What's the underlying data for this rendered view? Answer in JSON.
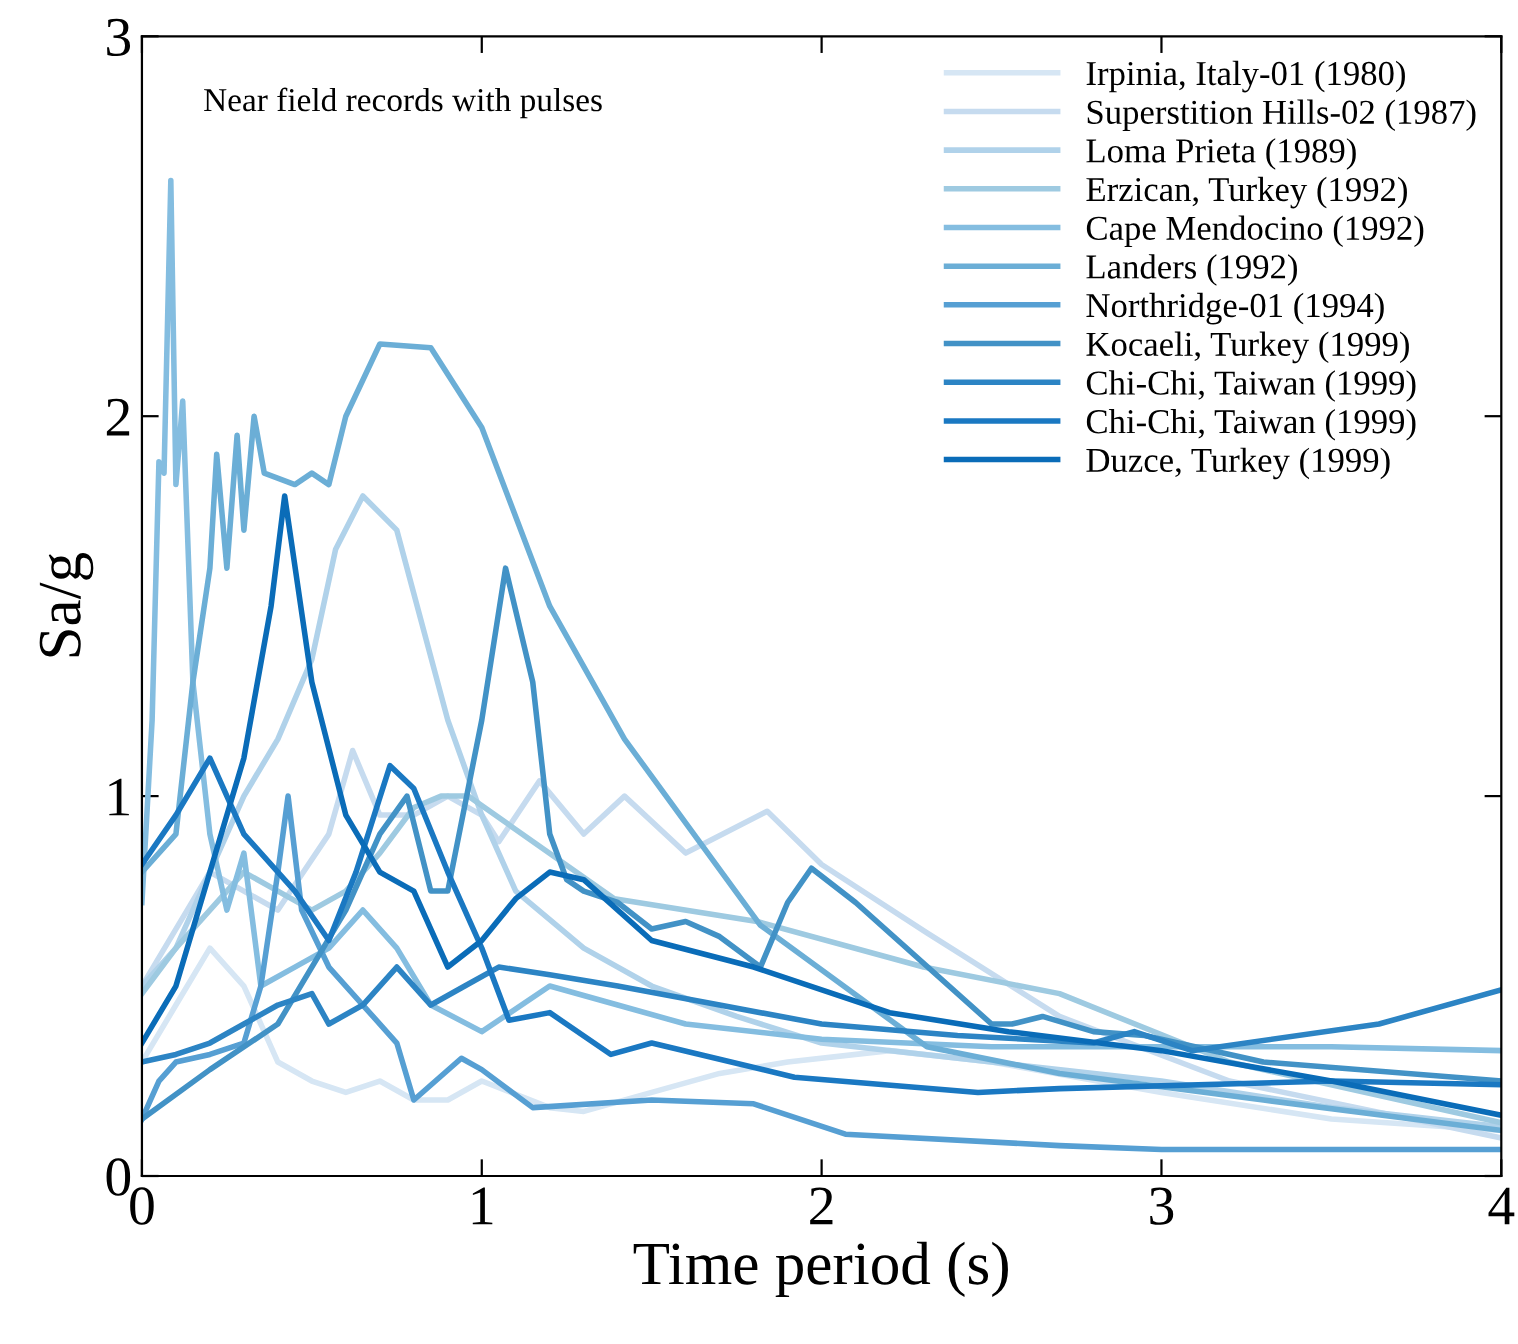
{
  "chart_data": {
    "type": "line",
    "xlabel": "Time period (s)",
    "ylabel": "Sa/g",
    "annotations": [
      "Near field records with pulses"
    ],
    "xlim": [
      0,
      4
    ],
    "ylim": [
      0,
      3
    ],
    "xticks": [
      0,
      1,
      2,
      3,
      4
    ],
    "yticks": [
      0,
      1,
      2,
      3
    ],
    "grid": false,
    "legend": "top right",
    "marker": "none",
    "line_style": "solid",
    "series": [
      {
        "name": "Irpinia, Italy-01 (1980)",
        "color": "#d6e6f4",
        "x": [
          0,
          0.1,
          0.2,
          0.3,
          0.4,
          0.5,
          0.6,
          0.7,
          0.8,
          0.9,
          1.0,
          1.2,
          1.3,
          1.5,
          1.7,
          1.9,
          2.2,
          2.5,
          3.0,
          3.5,
          4
        ],
        "values": [
          0.3,
          0.45,
          0.6,
          0.5,
          0.3,
          0.25,
          0.22,
          0.25,
          0.2,
          0.2,
          0.25,
          0.18,
          0.17,
          0.22,
          0.27,
          0.3,
          0.33,
          0.3,
          0.22,
          0.15,
          0.12
        ]
      },
      {
        "name": "Superstition Hills-02 (1987)",
        "color": "#c6dbef",
        "x": [
          0,
          0.2,
          0.4,
          0.55,
          0.62,
          0.7,
          0.8,
          0.9,
          1.0,
          1.05,
          1.17,
          1.3,
          1.42,
          1.6,
          1.84,
          2.0,
          2.31,
          2.7,
          3.2,
          4
        ],
        "values": [
          0.5,
          0.8,
          0.7,
          0.9,
          1.12,
          0.95,
          0.95,
          1.0,
          0.95,
          0.88,
          1.04,
          0.9,
          1.0,
          0.85,
          0.96,
          0.82,
          0.64,
          0.42,
          0.25,
          0.1
        ]
      },
      {
        "name": "Loma Prieta (1989)",
        "color": "#b0d2ea",
        "x": [
          0,
          0.1,
          0.2,
          0.3,
          0.4,
          0.5,
          0.57,
          0.65,
          0.75,
          0.9,
          1.0,
          1.1,
          1.3,
          1.5,
          1.75,
          2.0,
          2.5,
          3.0,
          3.5,
          4
        ],
        "values": [
          0.5,
          0.6,
          0.8,
          1.0,
          1.15,
          1.36,
          1.65,
          1.79,
          1.7,
          1.2,
          0.95,
          0.75,
          0.6,
          0.5,
          0.42,
          0.35,
          0.3,
          0.25,
          0.18,
          0.13
        ]
      },
      {
        "name": "Erzican, Turkey (1992)",
        "color": "#9ecae1",
        "x": [
          0,
          0.1,
          0.2,
          0.3,
          0.4,
          0.5,
          0.6,
          0.7,
          0.8,
          0.88,
          0.96,
          1.39,
          1.81,
          2.3,
          2.7,
          3.2,
          4
        ],
        "values": [
          0.48,
          0.6,
          0.7,
          0.8,
          0.75,
          0.7,
          0.75,
          0.85,
          0.97,
          1.0,
          1.0,
          0.73,
          0.67,
          0.55,
          0.48,
          0.3,
          0.14
        ]
      },
      {
        "name": "Cape Mendocino (1992)",
        "color": "#84bde0",
        "x": [
          0,
          0.03,
          0.05,
          0.065,
          0.085,
          0.1,
          0.12,
          0.15,
          0.2,
          0.25,
          0.3,
          0.35,
          0.45,
          0.55,
          0.65,
          0.75,
          0.85,
          1.0,
          1.2,
          1.4,
          1.6,
          2.0,
          2.5,
          3.0,
          3.5,
          4
        ],
        "values": [
          0.72,
          1.2,
          1.88,
          1.85,
          2.62,
          1.82,
          2.04,
          1.3,
          0.9,
          0.7,
          0.85,
          0.5,
          0.55,
          0.6,
          0.7,
          0.6,
          0.45,
          0.38,
          0.5,
          0.45,
          0.4,
          0.36,
          0.34,
          0.34,
          0.34,
          0.33
        ]
      },
      {
        "name": "Landers (1992)",
        "color": "#6baed6",
        "x": [
          0,
          0.1,
          0.15,
          0.2,
          0.22,
          0.25,
          0.28,
          0.3,
          0.33,
          0.36,
          0.45,
          0.5,
          0.55,
          0.6,
          0.7,
          0.85,
          1.0,
          1.2,
          1.42,
          1.82,
          2.31,
          2.7,
          3.3,
          4
        ],
        "values": [
          0.8,
          0.9,
          1.3,
          1.6,
          1.9,
          1.6,
          1.95,
          1.7,
          2.0,
          1.85,
          1.82,
          1.85,
          1.82,
          2.0,
          2.19,
          2.18,
          1.97,
          1.5,
          1.15,
          0.66,
          0.34,
          0.27,
          0.2,
          0.12
        ]
      },
      {
        "name": "Northridge-01 (1994)",
        "color": "#569fd3",
        "x": [
          0,
          0.05,
          0.1,
          0.2,
          0.3,
          0.35,
          0.4,
          0.43,
          0.47,
          0.55,
          0.65,
          0.75,
          0.8,
          0.94,
          1.0,
          1.15,
          1.5,
          1.8,
          2.07,
          2.7,
          3.0,
          4
        ],
        "values": [
          0.15,
          0.25,
          0.3,
          0.32,
          0.35,
          0.5,
          0.8,
          1.0,
          0.7,
          0.55,
          0.45,
          0.35,
          0.2,
          0.31,
          0.28,
          0.18,
          0.2,
          0.19,
          0.11,
          0.08,
          0.07,
          0.07
        ]
      },
      {
        "name": "Kocaeli, Turkey (1999)",
        "color": "#4292c6",
        "x": [
          0,
          0.2,
          0.4,
          0.5,
          0.6,
          0.7,
          0.78,
          0.85,
          0.9,
          1.0,
          1.07,
          1.15,
          1.2,
          1.25,
          1.3,
          1.4,
          1.5,
          1.6,
          1.7,
          1.82,
          1.9,
          1.97,
          2.1,
          2.5,
          2.56,
          2.65,
          2.8,
          2.95,
          3.3,
          4
        ],
        "values": [
          0.15,
          0.28,
          0.4,
          0.55,
          0.7,
          0.9,
          1.0,
          0.75,
          0.75,
          1.2,
          1.6,
          1.3,
          0.9,
          0.78,
          0.75,
          0.72,
          0.65,
          0.67,
          0.63,
          0.55,
          0.72,
          0.81,
          0.72,
          0.4,
          0.4,
          0.42,
          0.38,
          0.37,
          0.3,
          0.25
        ]
      },
      {
        "name": "Chi-Chi, Taiwan (1999)",
        "color": "#2c84c4",
        "x": [
          0,
          0.1,
          0.2,
          0.3,
          0.4,
          0.5,
          0.55,
          0.65,
          0.75,
          0.85,
          0.95,
          1.05,
          1.2,
          1.4,
          1.7,
          2.0,
          2.4,
          2.8,
          2.92,
          3.09,
          3.64,
          4
        ],
        "values": [
          0.3,
          0.32,
          0.35,
          0.4,
          0.45,
          0.48,
          0.4,
          0.45,
          0.55,
          0.45,
          0.5,
          0.55,
          0.53,
          0.5,
          0.45,
          0.4,
          0.37,
          0.35,
          0.38,
          0.33,
          0.4,
          0.49
        ]
      },
      {
        "name": "Chi-Chi, Taiwan (1999)",
        "color": "#1a78c2",
        "x": [
          0,
          0.1,
          0.2,
          0.3,
          0.45,
          0.55,
          0.63,
          0.73,
          0.8,
          0.9,
          1.0,
          1.08,
          1.2,
          1.38,
          1.5,
          1.92,
          2.46,
          2.7,
          3.5,
          4
        ],
        "values": [
          0.82,
          0.95,
          1.1,
          0.9,
          0.75,
          0.62,
          0.8,
          1.08,
          1.02,
          0.8,
          0.6,
          0.41,
          0.43,
          0.32,
          0.35,
          0.26,
          0.22,
          0.23,
          0.25,
          0.24
        ]
      },
      {
        "name": "Duzce, Turkey (1999)",
        "color": "#0a6cb8",
        "x": [
          0,
          0.1,
          0.2,
          0.3,
          0.38,
          0.42,
          0.5,
          0.6,
          0.7,
          0.8,
          0.9,
          1.0,
          1.1,
          1.2,
          1.3,
          1.5,
          1.8,
          2.2,
          2.55,
          3.0,
          3.5,
          4
        ],
        "values": [
          0.35,
          0.5,
          0.8,
          1.1,
          1.5,
          1.79,
          1.3,
          0.95,
          0.8,
          0.75,
          0.55,
          0.62,
          0.73,
          0.8,
          0.78,
          0.62,
          0.55,
          0.43,
          0.38,
          0.33,
          0.25,
          0.16
        ]
      }
    ]
  }
}
